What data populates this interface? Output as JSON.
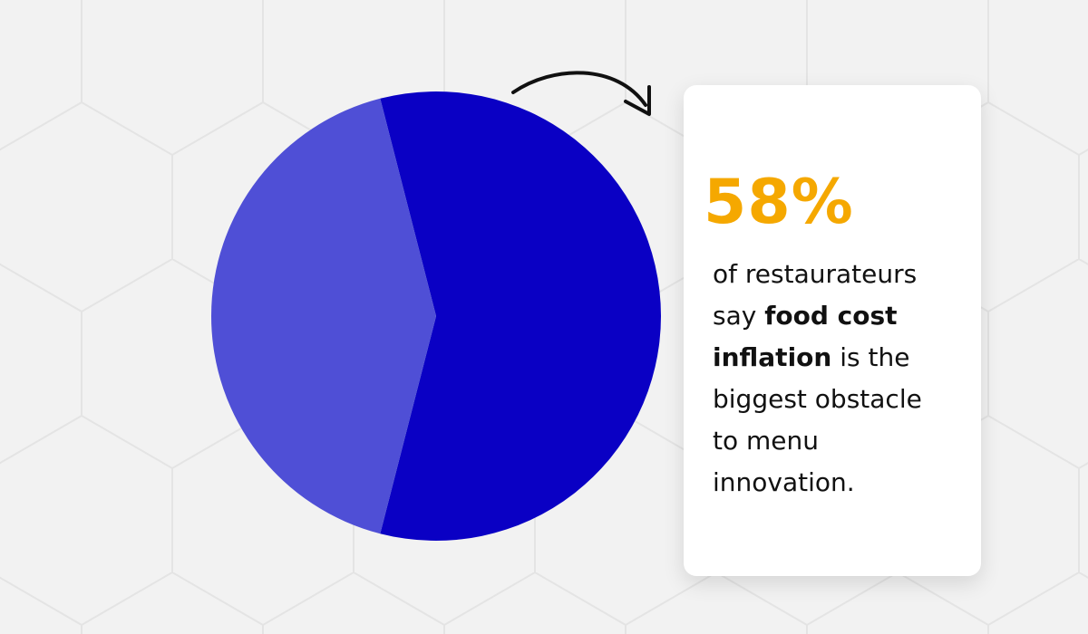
{
  "chart_data": {
    "type": "pie",
    "categories": [
      null,
      null
    ],
    "values": [
      58,
      42
    ],
    "value_labels": [
      "58%",
      null
    ],
    "colors": [
      "#0a00c4",
      "#4f4fd6"
    ],
    "annotation": [
      "of restaurateurs say ",
      "food cost inflation",
      " is the biggest obstacle to menu innovation."
    ]
  }
}
